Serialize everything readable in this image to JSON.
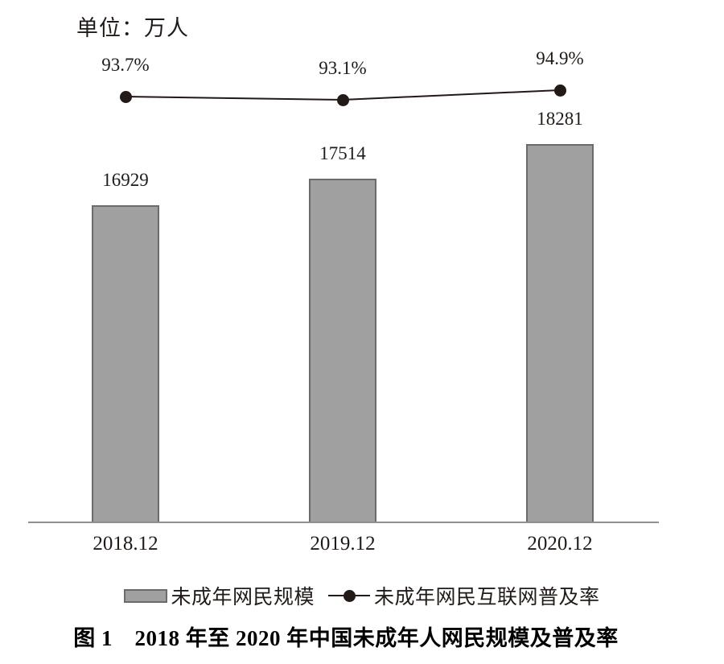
{
  "unit_label": "单位：万人",
  "caption": "图 1　2018 年至 2020 年中国未成年人网民规模及普及率",
  "legend": {
    "bar_label": "未成年网民规模",
    "line_label": "未成年网民互联网普及率"
  },
  "colors": {
    "bar_fill": "#a0a0a0",
    "bar_border": "#6b6b6b",
    "line_and_dots": "#231916",
    "axis_line": "#8f8f8f",
    "text": "#201b18",
    "caption_text": "#000000"
  },
  "chart_data": {
    "type": "bar",
    "combo": "bar+line",
    "categories": [
      "2018.12",
      "2019.12",
      "2020.12"
    ],
    "series": [
      {
        "name": "未成年网民规模",
        "kind": "bar",
        "unit": "万人",
        "values": [
          16929,
          17514,
          18281
        ],
        "data_labels": [
          "16929",
          "17514",
          "18281"
        ]
      },
      {
        "name": "未成年网民互联网普及率",
        "kind": "line",
        "unit": "%",
        "values": [
          93.7,
          93.1,
          94.9
        ],
        "data_labels": [
          "93.7%",
          "93.1%",
          "94.9%"
        ]
      }
    ],
    "title": "图 1　2018 年至 2020 年中国未成年人网民规模及普及率",
    "xlabel": "",
    "ylabel": "单位：万人",
    "grid": false,
    "legend_position": "bottom",
    "value_axis_visible": false,
    "bar_axis_implied_min": 9900
  }
}
